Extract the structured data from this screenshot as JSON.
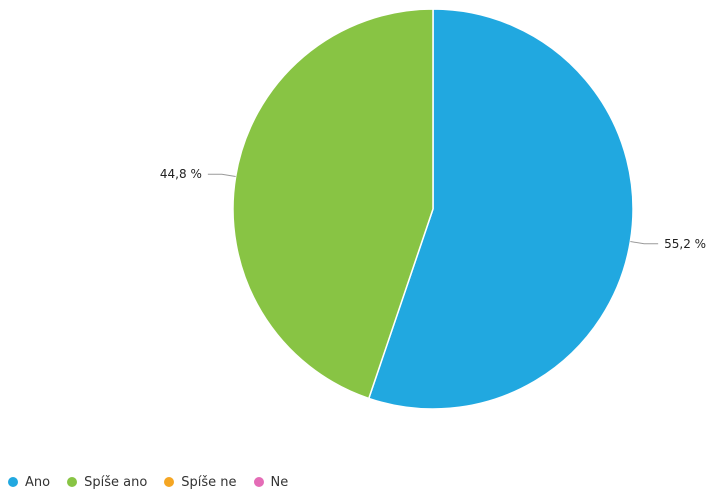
{
  "chart_data": {
    "type": "pie",
    "series": [
      {
        "name": "Ano",
        "value": 55.2,
        "label": "55,2 %",
        "color": "#21a8e0"
      },
      {
        "name": "Spíše ano",
        "value": 44.8,
        "label": "44,8 %",
        "color": "#88c444"
      },
      {
        "name": "Spíše ne",
        "value": 0,
        "label": "",
        "color": "#f5a623"
      },
      {
        "name": "Ne",
        "value": 0,
        "label": "",
        "color": "#e46cb6"
      }
    ],
    "start_angle_deg": 0,
    "direction": "clockwise",
    "legend_position": "bottom-left"
  }
}
